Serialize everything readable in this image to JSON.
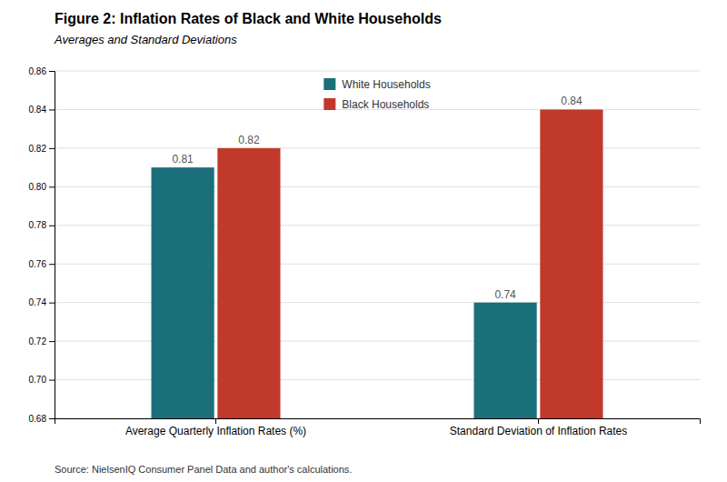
{
  "chart_data": {
    "type": "bar",
    "title": "Figure 2: Inflation Rates of Black and White Households",
    "subtitle": "Averages and Standard Deviations",
    "source": "Source: NielsenIQ Consumer Panel Data and author's calculations.",
    "categories": [
      "Average Quarterly Inflation Rates (%)",
      "Standard Deviation of Inflation Rates"
    ],
    "series": [
      {
        "name": "White Households",
        "color": "#1a6f7a",
        "values": [
          0.81,
          0.74
        ]
      },
      {
        "name": "Black Households",
        "color": "#c0392b",
        "values": [
          0.82,
          0.84
        ]
      }
    ],
    "ylim": [
      0.68,
      0.86
    ],
    "yticks": [
      0.68,
      {
        "value": 0.7,
        "label": "0.70"
      },
      0.72,
      0.74,
      0.76,
      0.78,
      {
        "value": 0.8,
        "label": "0.80"
      },
      0.82,
      0.84,
      0.86
    ],
    "grid": true,
    "legend": "top",
    "data_labels": true
  }
}
